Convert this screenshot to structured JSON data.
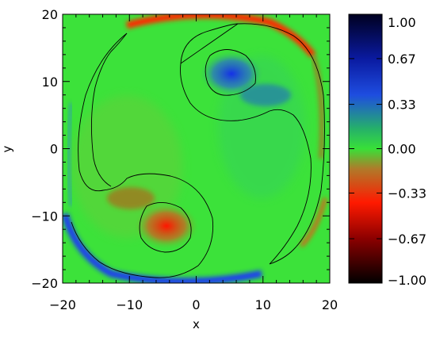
{
  "chart_data": {
    "type": "heatmap",
    "xlabel": "x",
    "ylabel": "y",
    "xlim": [
      -20,
      20
    ],
    "ylim": [
      -20,
      20
    ],
    "xticks": [
      -20,
      -10,
      0,
      10,
      20
    ],
    "yticks": [
      -20,
      -10,
      0,
      10,
      20
    ],
    "x_tick_labels": [
      "−20",
      "−10",
      "0",
      "10",
      "20"
    ],
    "y_tick_labels": [
      "−20",
      "−10",
      "0",
      "10",
      "20"
    ],
    "colorbar": {
      "range": [
        -1.0,
        1.0
      ],
      "ticks": [
        1.0,
        0.67,
        0.33,
        0.0,
        -0.33,
        -0.67,
        -1.0
      ],
      "tick_labels": [
        "1.00",
        "0.67",
        "0.33",
        "0.00",
        "−0.33",
        "−0.67",
        "−1.00"
      ],
      "colormap": [
        {
          "v": -1.0,
          "color": "#000000"
        },
        {
          "v": -0.67,
          "color": "#8b0000"
        },
        {
          "v": -0.4,
          "color": "#ff1a00"
        },
        {
          "v": -0.15,
          "color": "#b07a2a"
        },
        {
          "v": 0.0,
          "color": "#38e038"
        },
        {
          "v": 0.15,
          "color": "#25b06a"
        },
        {
          "v": 0.4,
          "color": "#1e4de0"
        },
        {
          "v": 0.67,
          "color": "#0a1aa0"
        },
        {
          "v": 1.0,
          "color": "#000020"
        }
      ]
    },
    "background_color": "#3ce23a",
    "features": [
      {
        "name": "positive vortex",
        "center": [
          3.5,
          11.5
        ],
        "peak": 0.6
      },
      {
        "name": "negative vortex",
        "center": [
          -3.5,
          -11
        ],
        "peak": -0.6
      },
      {
        "name": "positive boundary band",
        "location": "bottom-left rim",
        "peak": 0.5
      },
      {
        "name": "negative boundary band",
        "location": "top rim",
        "peak": -0.5
      }
    ]
  }
}
